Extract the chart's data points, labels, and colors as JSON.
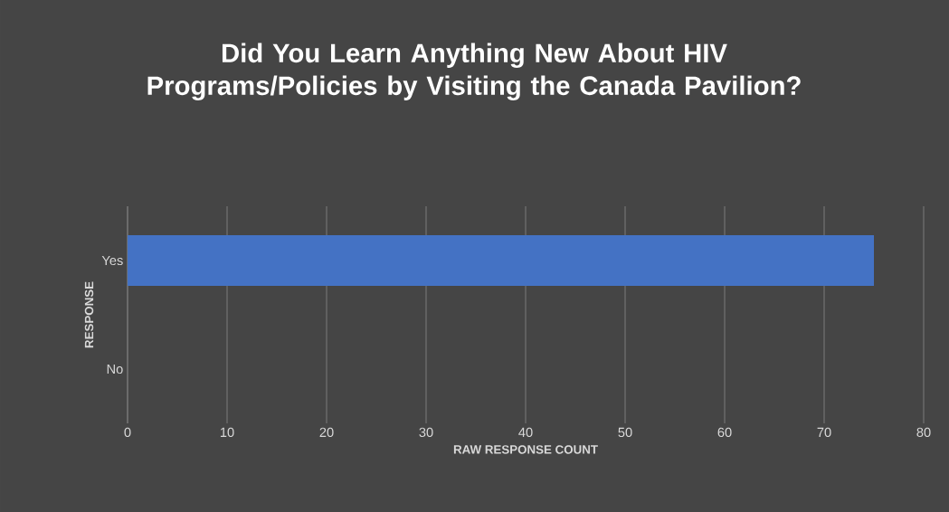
{
  "chart_data": {
    "type": "bar",
    "orientation": "horizontal",
    "title": "Did You Learn Anything New About HIV Programs/Policies by Visiting the Canada Pavilion?",
    "xlabel": "RAW RESPONSE COUNT",
    "ylabel": "RESPONSE",
    "categories": [
      "Yes",
      "No"
    ],
    "values": [
      75,
      0
    ],
    "color": "#4472c4",
    "xlim": [
      0,
      80
    ],
    "xticks": [
      0,
      10,
      20,
      30,
      40,
      50,
      60,
      70,
      80
    ],
    "grid": "x"
  }
}
